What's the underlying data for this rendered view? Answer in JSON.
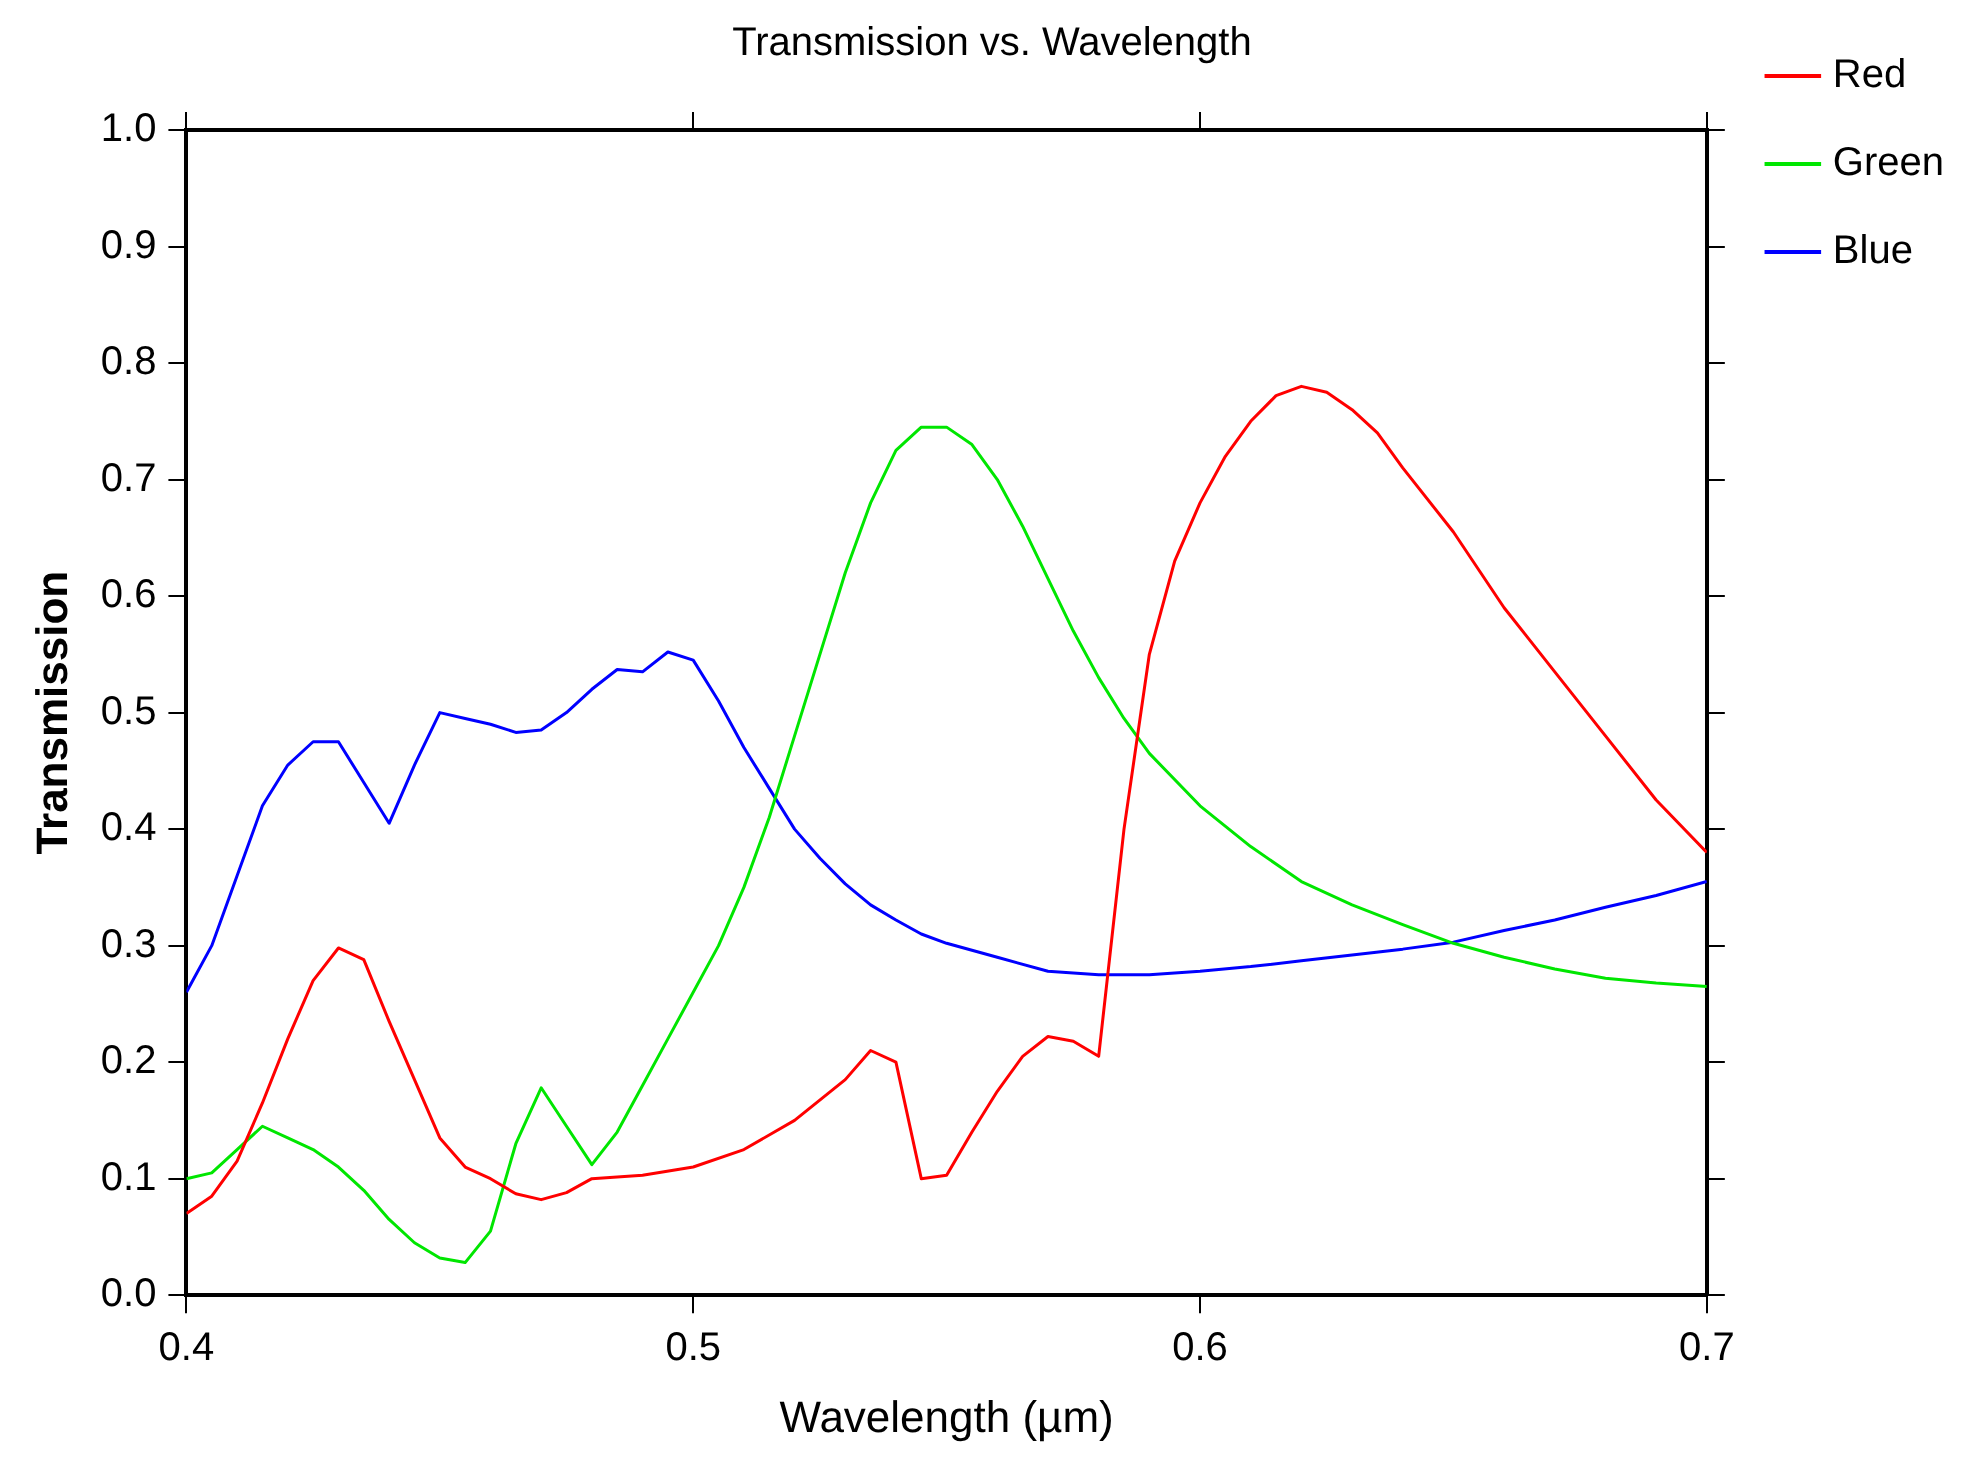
{
  "chart_data": {
    "type": "line",
    "title": "Transmission vs. Wavelength",
    "xlabel": "Wavelength (µm)",
    "ylabel": "Transmission",
    "xlim": [
      0.4,
      0.7
    ],
    "xticks": [
      0.4,
      0.5,
      0.6,
      0.7
    ],
    "ylim": [
      0,
      1
    ],
    "yticks": [
      {
        "value": 0,
        "label": "0.0"
      },
      0.1,
      0.2,
      0.3,
      0.4,
      0.5,
      0.6,
      0.7,
      0.8,
      0.9,
      {
        "value": 1,
        "label": "1.0"
      }
    ],
    "grid": false,
    "legend": "right",
    "marker": "none",
    "line_style": "solid",
    "series": [
      {
        "name": "Red",
        "color": "#ff0000",
        "x": [
          0.4,
          0.405,
          0.41,
          0.415,
          0.42,
          0.425,
          0.43,
          0.435,
          0.44,
          0.445,
          0.45,
          0.455,
          0.46,
          0.465,
          0.47,
          0.475,
          0.48,
          0.49,
          0.5,
          0.51,
          0.52,
          0.53,
          0.535,
          0.54,
          0.545,
          0.55,
          0.555,
          0.56,
          0.565,
          0.57,
          0.575,
          0.58,
          0.585,
          0.59,
          0.595,
          0.6,
          0.605,
          0.61,
          0.615,
          0.62,
          0.625,
          0.63,
          0.635,
          0.64,
          0.65,
          0.66,
          0.67,
          0.68,
          0.69,
          0.7
        ],
        "values": [
          0.07,
          0.085,
          0.115,
          0.165,
          0.22,
          0.27,
          0.298,
          0.288,
          0.235,
          0.185,
          0.135,
          0.11,
          0.1,
          0.087,
          0.082,
          0.088,
          0.1,
          0.103,
          0.11,
          0.125,
          0.15,
          0.185,
          0.21,
          0.2,
          0.1,
          0.103,
          0.14,
          0.175,
          0.205,
          0.222,
          0.218,
          0.205,
          0.4,
          0.55,
          0.63,
          0.68,
          0.72,
          0.75,
          0.772,
          0.78,
          0.775,
          0.76,
          0.74,
          0.71,
          0.655,
          0.59,
          0.535,
          0.48,
          0.425,
          0.38
        ]
      },
      {
        "name": "Green",
        "color": "#00e600",
        "x": [
          0.4,
          0.405,
          0.41,
          0.415,
          0.42,
          0.425,
          0.43,
          0.435,
          0.44,
          0.445,
          0.45,
          0.455,
          0.46,
          0.465,
          0.47,
          0.475,
          0.48,
          0.485,
          0.49,
          0.495,
          0.5,
          0.505,
          0.51,
          0.515,
          0.52,
          0.525,
          0.53,
          0.535,
          0.54,
          0.545,
          0.55,
          0.555,
          0.56,
          0.565,
          0.57,
          0.575,
          0.58,
          0.585,
          0.59,
          0.6,
          0.61,
          0.62,
          0.63,
          0.64,
          0.65,
          0.66,
          0.67,
          0.68,
          0.69,
          0.7
        ],
        "values": [
          0.1,
          0.105,
          0.125,
          0.145,
          0.135,
          0.125,
          0.11,
          0.09,
          0.065,
          0.045,
          0.032,
          0.028,
          0.055,
          0.13,
          0.178,
          0.145,
          0.112,
          0.14,
          0.18,
          0.22,
          0.26,
          0.3,
          0.35,
          0.41,
          0.48,
          0.55,
          0.62,
          0.68,
          0.725,
          0.745,
          0.745,
          0.73,
          0.7,
          0.66,
          0.615,
          0.57,
          0.53,
          0.495,
          0.465,
          0.42,
          0.385,
          0.355,
          0.335,
          0.318,
          0.302,
          0.29,
          0.28,
          0.272,
          0.268,
          0.265
        ]
      },
      {
        "name": "Blue",
        "color": "#0000ff",
        "x": [
          0.4,
          0.405,
          0.41,
          0.415,
          0.42,
          0.425,
          0.43,
          0.435,
          0.44,
          0.445,
          0.45,
          0.455,
          0.46,
          0.465,
          0.47,
          0.475,
          0.48,
          0.485,
          0.49,
          0.495,
          0.5,
          0.505,
          0.51,
          0.515,
          0.52,
          0.525,
          0.53,
          0.535,
          0.54,
          0.545,
          0.55,
          0.56,
          0.57,
          0.58,
          0.59,
          0.6,
          0.61,
          0.62,
          0.63,
          0.64,
          0.65,
          0.66,
          0.67,
          0.68,
          0.69,
          0.7
        ],
        "values": [
          0.26,
          0.3,
          0.36,
          0.42,
          0.455,
          0.475,
          0.475,
          0.44,
          0.405,
          0.455,
          0.5,
          0.495,
          0.49,
          0.483,
          0.485,
          0.5,
          0.52,
          0.537,
          0.535,
          0.552,
          0.545,
          0.51,
          0.47,
          0.435,
          0.4,
          0.375,
          0.353,
          0.335,
          0.322,
          0.31,
          0.302,
          0.29,
          0.278,
          0.275,
          0.275,
          0.278,
          0.282,
          0.287,
          0.292,
          0.297,
          0.303,
          0.313,
          0.322,
          0.333,
          0.343,
          0.355
        ]
      }
    ]
  }
}
